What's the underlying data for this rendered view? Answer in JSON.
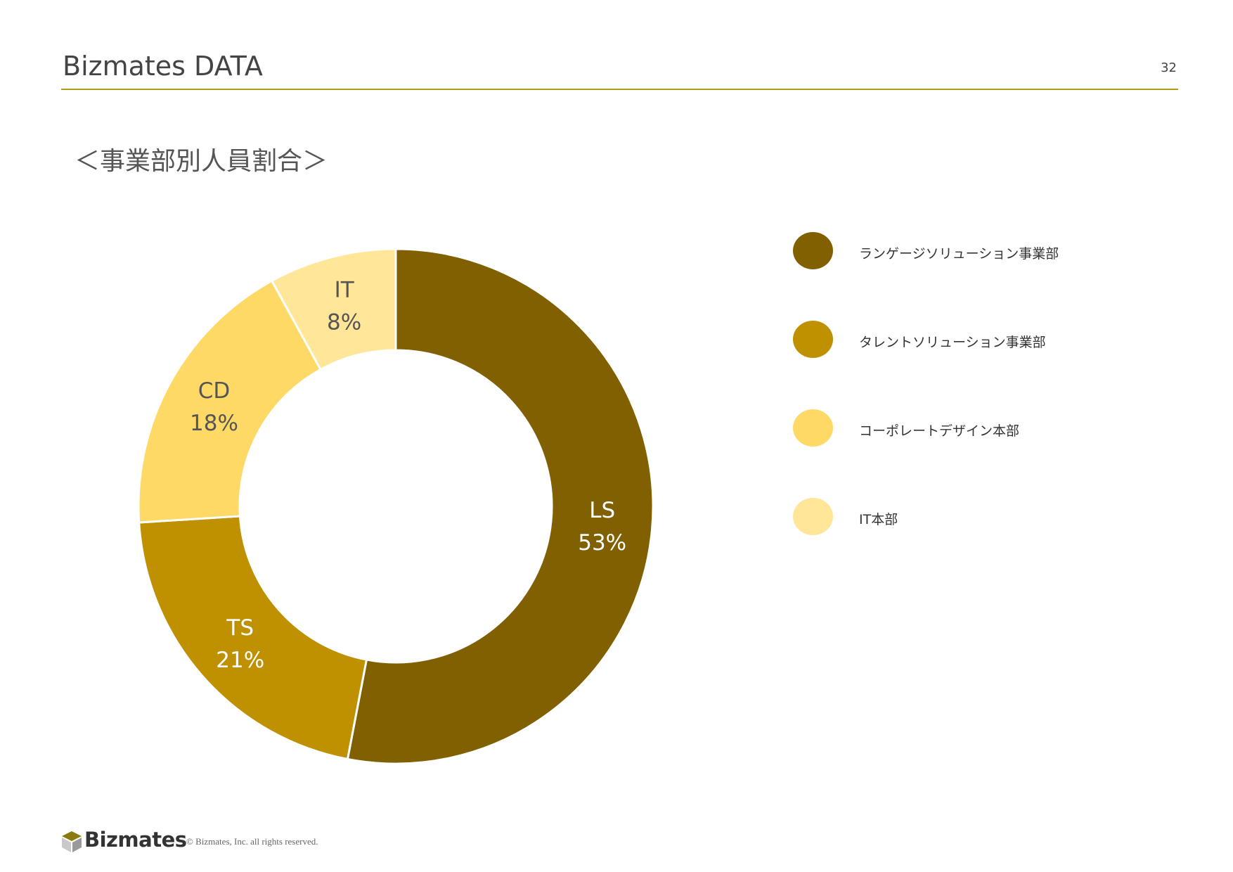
{
  "header": {
    "title": "Bizmates DATA",
    "page_number": "32"
  },
  "section_heading": "＜事業部別人員割合＞",
  "chart_data": {
    "type": "pie",
    "donut": true,
    "slices": [
      {
        "label": "LS",
        "value": 53,
        "display": "53%",
        "color": "#806000",
        "label_color": "#ffffff",
        "legend": "ランゲージソリューション事業部"
      },
      {
        "label": "TS",
        "value": 21,
        "display": "21%",
        "color": "#bf9000",
        "label_color": "#ffffff",
        "legend": "タレントソリューション事業部"
      },
      {
        "label": "CD",
        "value": 18,
        "display": "18%",
        "color": "#ffd966",
        "label_color": "#555555",
        "legend": "コーポレートデザイン本部"
      },
      {
        "label": "IT",
        "value": 8,
        "display": "8%",
        "color": "#ffe699",
        "label_color": "#555555",
        "legend": "IT本部"
      }
    ],
    "legend_position": "right"
  },
  "footer": {
    "logo_text": "Bizmates",
    "copyright": "© Bizmates, Inc. all rights reserved."
  }
}
